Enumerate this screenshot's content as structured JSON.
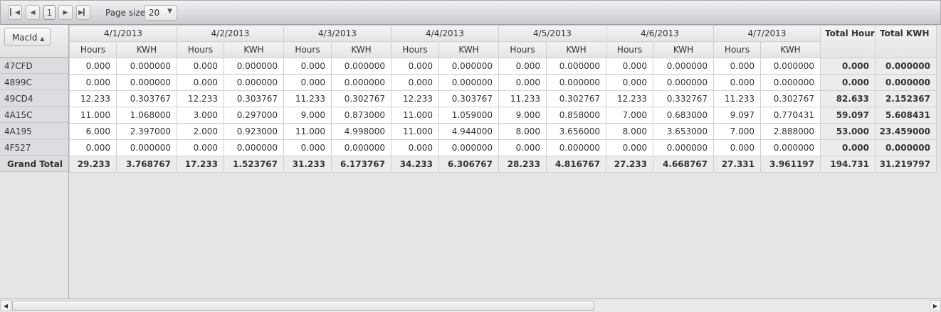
{
  "pager": {
    "first_icon": "first-page-icon",
    "prev_icon": "prev-page-icon",
    "current_page": "1",
    "next_icon": "next-page-icon",
    "last_icon": "last-page-icon",
    "page_size_label": "Page size:",
    "page_size_value": "20"
  },
  "row_header": {
    "field": "MacId",
    "sort": "ascending"
  },
  "dates": [
    "4/1/2013",
    "4/2/2013",
    "4/3/2013",
    "4/4/2013",
    "4/5/2013",
    "4/6/2013",
    "4/7/2013"
  ],
  "measures": [
    "Hours",
    "KWH"
  ],
  "totals_headers": [
    "Total Hours",
    "Total KWH"
  ],
  "rows": [
    {
      "id": "47CFD",
      "cells": [
        "0.000",
        "0.000000",
        "0.000",
        "0.000000",
        "0.000",
        "0.000000",
        "0.000",
        "0.000000",
        "0.000",
        "0.000000",
        "0.000",
        "0.000000",
        "0.000",
        "0.000000"
      ],
      "totals": [
        "0.000",
        "0.000000"
      ]
    },
    {
      "id": "4899C",
      "cells": [
        "0.000",
        "0.000000",
        "0.000",
        "0.000000",
        "0.000",
        "0.000000",
        "0.000",
        "0.000000",
        "0.000",
        "0.000000",
        "0.000",
        "0.000000",
        "0.000",
        "0.000000"
      ],
      "totals": [
        "0.000",
        "0.000000"
      ]
    },
    {
      "id": "49CD4",
      "cells": [
        "12.233",
        "0.303767",
        "12.233",
        "0.303767",
        "11.233",
        "0.302767",
        "12.233",
        "0.303767",
        "11.233",
        "0.302767",
        "12.233",
        "0.332767",
        "11.233",
        "0.302767"
      ],
      "totals": [
        "82.633",
        "2.152367"
      ]
    },
    {
      "id": "4A15C",
      "cells": [
        "11.000",
        "1.068000",
        "3.000",
        "0.297000",
        "9.000",
        "0.873000",
        "11.000",
        "1.059000",
        "9.000",
        "0.858000",
        "7.000",
        "0.683000",
        "9.097",
        "0.770431"
      ],
      "totals": [
        "59.097",
        "5.608431"
      ]
    },
    {
      "id": "4A195",
      "cells": [
        "6.000",
        "2.397000",
        "2.000",
        "0.923000",
        "11.000",
        "4.998000",
        "11.000",
        "4.944000",
        "8.000",
        "3.656000",
        "8.000",
        "3.653000",
        "7.000",
        "2.888000"
      ],
      "totals": [
        "53.000",
        "23.459000"
      ]
    },
    {
      "id": "4F527",
      "cells": [
        "0.000",
        "0.000000",
        "0.000",
        "0.000000",
        "0.000",
        "0.000000",
        "0.000",
        "0.000000",
        "0.000",
        "0.000000",
        "0.000",
        "0.000000",
        "0.000",
        "0.000000"
      ],
      "totals": [
        "0.000",
        "0.000000"
      ]
    }
  ],
  "grand_total": {
    "label": "Grand Total",
    "cells": [
      "29.233",
      "3.768767",
      "17.233",
      "1.523767",
      "31.233",
      "6.173767",
      "34.233",
      "6.306767",
      "28.233",
      "4.816767",
      "27.233",
      "4.668767",
      "27.331",
      "3.961197"
    ],
    "totals": [
      "194.731",
      "31.219797"
    ]
  }
}
